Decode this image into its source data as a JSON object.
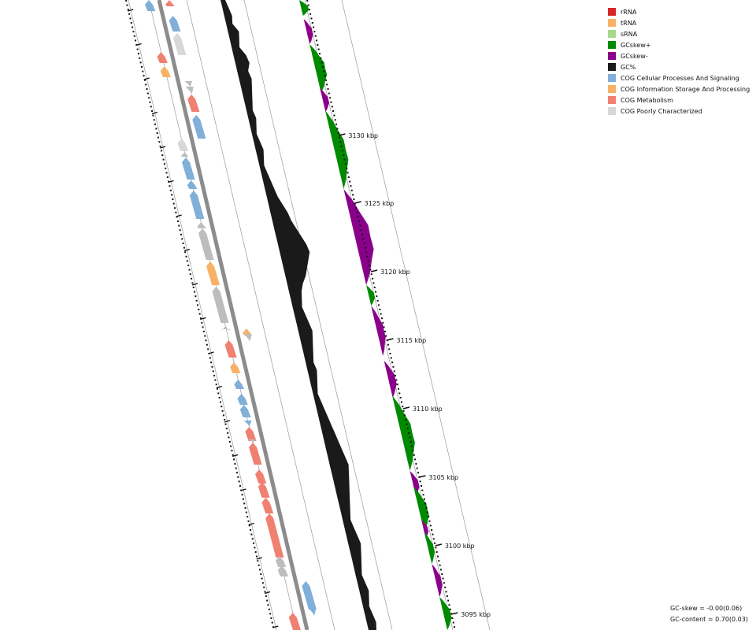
{
  "legend": [
    {
      "label": "rRNA",
      "color": "#d62728"
    },
    {
      "label": "tRNA",
      "color": "#f7b267"
    },
    {
      "label": "sRNA",
      "color": "#a6d88e"
    },
    {
      "label": "GCskew+",
      "color": "#008a00"
    },
    {
      "label": "GCskew-",
      "color": "#8b008b"
    },
    {
      "label": "GC%",
      "color": "#1a1a1a"
    },
    {
      "label": "COG Cellular Processes And Signaling",
      "color": "#80afd8"
    },
    {
      "label": "COG Information Storage And Processing",
      "color": "#f7b267"
    },
    {
      "label": "COG Metabolism",
      "color": "#f08070"
    },
    {
      "label": "COG Poorly Characterized",
      "color": "#d8d8d8"
    }
  ],
  "ticks": [
    "3095 kbp",
    "3100 kbp",
    "3105 kbp",
    "3110 kbp",
    "3115 kbp",
    "3120 kbp",
    "3125 kbp",
    "3130 kbp"
  ],
  "stats": {
    "gc_skew": "GC-skew = -0.00(0.06)",
    "gc_content": "GC-content = 0.70(0.03)"
  },
  "colors": {
    "backbone": "#8c8c8c",
    "hypothetical": "#bdbdbd"
  }
}
